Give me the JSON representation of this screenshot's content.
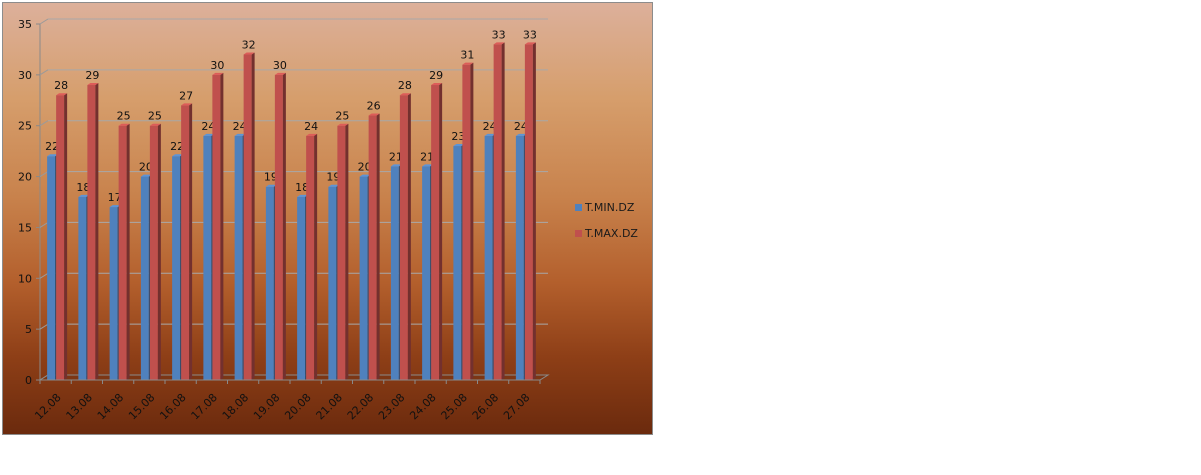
{
  "chart_data": {
    "type": "bar",
    "categories": [
      "12.08",
      "13.08",
      "14.08",
      "15.08",
      "16.08",
      "17.08",
      "18.08",
      "19.08",
      "20.08",
      "21.08",
      "22.08",
      "23.08",
      "24.08",
      "25.08",
      "26.08",
      "27.08"
    ],
    "series": [
      {
        "name": "T.MIN.DZ",
        "color": "#4f81bd",
        "values": [
          22,
          18,
          17,
          20,
          22,
          24,
          24,
          19,
          18,
          19,
          20,
          21,
          21,
          23,
          24,
          24
        ]
      },
      {
        "name": "T.MAX.DZ",
        "color": "#c0504d",
        "values": [
          28,
          29,
          25,
          25,
          27,
          30,
          32,
          30,
          24,
          25,
          26,
          28,
          29,
          31,
          33,
          33
        ]
      }
    ],
    "ylim": [
      0,
      35
    ],
    "yticks": [
      0,
      5,
      10,
      15,
      20,
      25,
      30,
      35
    ],
    "grid": true,
    "legend": "right"
  }
}
